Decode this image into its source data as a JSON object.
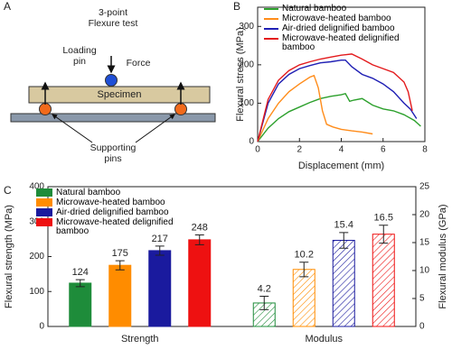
{
  "diagram": {
    "label": "A",
    "title": "3-point Flexure test",
    "loading_pin": "Loading pin",
    "force": "Force",
    "specimen": "Specimen",
    "supporting_pins": "Supporting pins"
  },
  "chart_data": [
    {
      "type": "line",
      "panel": "B",
      "xlabel": "Displacement (mm)",
      "ylabel": "Flexural stress (MPa)",
      "xlim": [
        0,
        8
      ],
      "xticks": [
        0,
        2,
        4,
        6,
        8
      ],
      "ylim": [
        0,
        350
      ],
      "yticks": [
        0,
        100,
        200,
        300
      ],
      "series": [
        {
          "name": "Natural bamboo",
          "color": "#2ca02c",
          "x": [
            0,
            0.5,
            1,
            1.5,
            2,
            2.5,
            3,
            3.5,
            4,
            4.2,
            4.4,
            4.6,
            5,
            5.5,
            6,
            6.5,
            7,
            7.5,
            7.8
          ],
          "values": [
            0,
            35,
            60,
            78,
            90,
            102,
            112,
            118,
            122,
            125,
            105,
            108,
            112,
            95,
            85,
            80,
            70,
            55,
            40
          ]
        },
        {
          "name": "Microwave-heated bamboo",
          "color": "#ff8c1a",
          "x": [
            0,
            0.5,
            1,
            1.5,
            2,
            2.5,
            2.7,
            2.9,
            3.1,
            3.3,
            3.6,
            4,
            4.5,
            5,
            5.5
          ],
          "values": [
            0,
            60,
            100,
            130,
            150,
            168,
            172,
            140,
            80,
            45,
            38,
            32,
            28,
            25,
            20
          ]
        },
        {
          "name": "Air-dried delignified bamboo",
          "color": "#1f1fb4",
          "x": [
            0,
            0.5,
            1,
            1.5,
            2,
            2.5,
            3,
            3.5,
            4,
            4.2,
            4.5,
            5,
            5.5,
            6,
            6.5,
            7,
            7.3,
            7.6
          ],
          "values": [
            0,
            100,
            150,
            175,
            190,
            198,
            205,
            208,
            212,
            212,
            195,
            175,
            165,
            150,
            130,
            100,
            85,
            60
          ]
        },
        {
          "name": "Microwave-heated delignified bamboo",
          "color": "#e31a1c",
          "x": [
            0,
            0.5,
            1,
            1.5,
            2,
            2.5,
            3,
            3.5,
            4,
            4.5,
            5,
            5.5,
            6,
            6.5,
            7,
            7.2,
            7.4
          ],
          "values": [
            0,
            110,
            160,
            185,
            200,
            208,
            215,
            220,
            225,
            228,
            215,
            200,
            190,
            180,
            155,
            130,
            80
          ]
        }
      ]
    },
    {
      "type": "bar",
      "panel": "C",
      "ylabel": "Flexural strength (MPa)",
      "y2label": "Flexural modulus (GPa)",
      "categories": [
        "Strength",
        "Modulus"
      ],
      "axes": [
        "y",
        "y2"
      ],
      "ylim": [
        0,
        400
      ],
      "yticks": [
        0,
        100,
        200,
        300,
        400
      ],
      "y2lim": [
        0,
        25
      ],
      "y2ticks": [
        0,
        5,
        10,
        15,
        20,
        25
      ],
      "series": [
        {
          "name": "Natural bamboo",
          "color": "#1e8c3a",
          "values": [
            124,
            4.2
          ],
          "errors": [
            10,
            1.2
          ]
        },
        {
          "name": "Microwave-heated bamboo",
          "color": "#ff8c00",
          "values": [
            175,
            10.2
          ],
          "errors": [
            13,
            1.3
          ]
        },
        {
          "name": "Air-dried delignified bamboo",
          "color": "#1a1a9e",
          "values": [
            217,
            15.4
          ],
          "errors": [
            13,
            1.4
          ]
        },
        {
          "name": "Microwave-heated delignified bamboo",
          "color": "#ee1111",
          "values": [
            248,
            16.5
          ],
          "errors": [
            14,
            1.6
          ]
        }
      ]
    }
  ]
}
